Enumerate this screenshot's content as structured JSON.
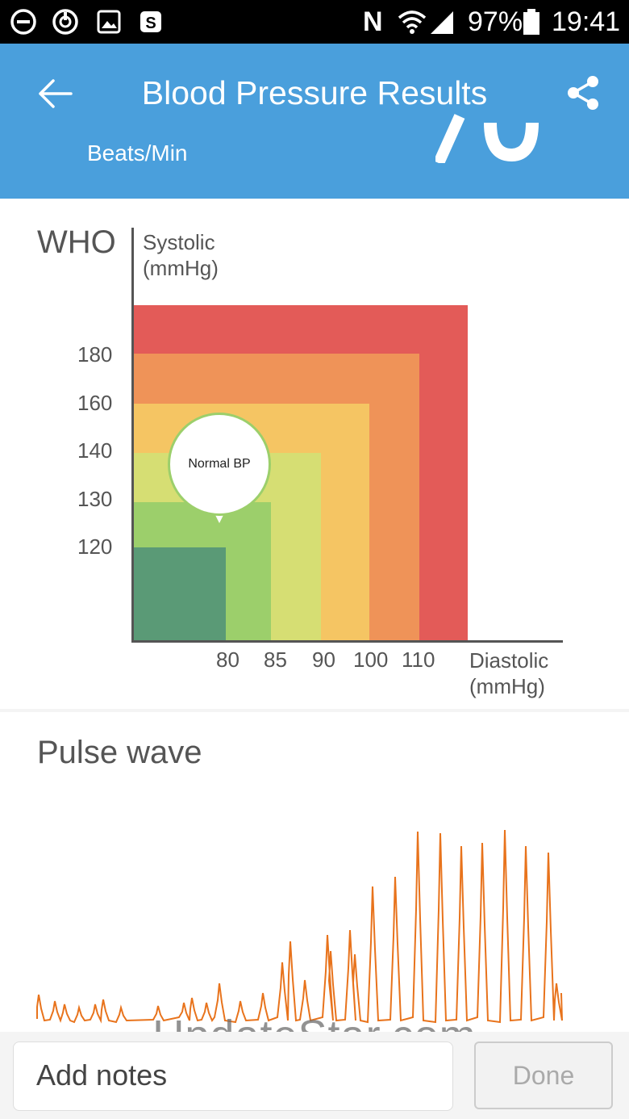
{
  "status_bar": {
    "battery": "97%",
    "time": "19:41",
    "network_letter": "N",
    "icons": [
      "dnd-icon",
      "sync-icon",
      "gallery-icon",
      "s-app-icon",
      "nfc-icon",
      "wifi-icon",
      "signal-icon",
      "battery-icon"
    ]
  },
  "app_bar": {
    "title": "Blood Pressure Results",
    "beats_label": "Beats/Min",
    "back_icon": "arrow-left-icon",
    "share_icon": "share-icon",
    "background": "#4a9fdc"
  },
  "who_chart": {
    "title": "WHO",
    "y_label_line1": "Systolic",
    "y_label_line2": "(mmHg)",
    "x_label_line1": "Diastolic",
    "x_label_line2": "(mmHg)",
    "y_ticks": [
      "180",
      "160",
      "140",
      "130",
      "120"
    ],
    "x_ticks": [
      "80",
      "85",
      "90",
      "100",
      "110"
    ],
    "bubble_label": "Normal BP",
    "zones": [
      {
        "color": "#e35b58"
      },
      {
        "color": "#ef9358"
      },
      {
        "color": "#f5c563"
      },
      {
        "color": "#d6de73"
      },
      {
        "color": "#9ccf6b"
      },
      {
        "color": "#5a9a76"
      }
    ]
  },
  "pulse_wave": {
    "title": "Pulse wave",
    "line_color": "#e8731c"
  },
  "watermark": "UpdateStar.com",
  "bottom": {
    "notes_label": "Add notes",
    "done_label": "Done"
  }
}
